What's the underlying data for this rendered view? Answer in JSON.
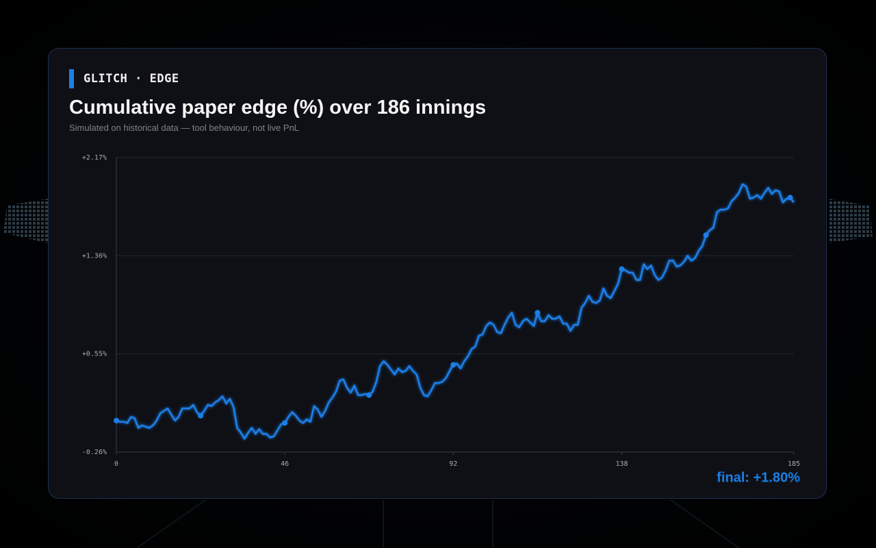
{
  "header": {
    "brand": "GLITCH · EDGE"
  },
  "chart_data": {
    "type": "line",
    "title": "Cumulative paper edge (%) over 186 innings",
    "subtitle": "Simulated on historical data — tool behaviour, not live PnL",
    "annotation": "final: +1.80%",
    "color": "#1a7fe8",
    "marker_every": 23,
    "grid": true,
    "xlim": [
      0,
      185
    ],
    "xticks": [
      0,
      46,
      92,
      138,
      185
    ],
    "ylim": [
      -0.26,
      2.17
    ],
    "yticks": [
      {
        "value": -0.26,
        "label": "-0.26%"
      },
      {
        "value": 0.55,
        "label": "+0.55%"
      },
      {
        "value": 1.36,
        "label": "+1.36%"
      },
      {
        "value": 2.17,
        "label": "+2.17%"
      }
    ],
    "x": [
      0,
      1,
      2,
      3,
      4,
      5,
      6,
      7,
      8,
      9,
      10,
      11,
      12,
      13,
      14,
      15,
      16,
      17,
      18,
      19,
      20,
      21,
      22,
      23,
      24,
      25,
      26,
      27,
      28,
      29,
      30,
      31,
      32,
      33,
      34,
      35,
      36,
      37,
      38,
      39,
      40,
      41,
      42,
      43,
      44,
      45,
      46,
      47,
      48,
      49,
      50,
      51,
      52,
      53,
      54,
      55,
      56,
      57,
      58,
      59,
      60,
      61,
      62,
      63,
      64,
      65,
      66,
      67,
      68,
      69,
      70,
      71,
      72,
      73,
      74,
      75,
      76,
      77,
      78,
      79,
      80,
      81,
      82,
      83,
      84,
      85,
      86,
      87,
      88,
      89,
      90,
      91,
      92,
      93,
      94,
      95,
      96,
      97,
      98,
      99,
      100,
      101,
      102,
      103,
      104,
      105,
      106,
      107,
      108,
      109,
      110,
      111,
      112,
      113,
      114,
      115,
      116,
      117,
      118,
      119,
      120,
      121,
      122,
      123,
      124,
      125,
      126,
      127,
      128,
      129,
      130,
      131,
      132,
      133,
      134,
      135,
      136,
      137,
      138,
      139,
      140,
      141,
      142,
      143,
      144,
      145,
      146,
      147,
      148,
      149,
      150,
      151,
      152,
      153,
      154,
      155,
      156,
      157,
      158,
      159,
      160,
      161,
      162,
      163,
      164,
      165,
      166,
      167,
      168,
      169,
      170,
      171,
      172,
      173,
      174,
      175,
      176,
      177,
      178,
      179,
      180,
      181,
      182,
      183,
      184,
      185
    ],
    "values": [
      0.0,
      -0.01,
      -0.01,
      -0.02,
      0.03,
      0.02,
      -0.06,
      -0.04,
      -0.05,
      -0.06,
      -0.04,
      0.0,
      0.06,
      0.08,
      0.1,
      0.05,
      0.0,
      0.03,
      0.1,
      0.1,
      0.1,
      0.13,
      0.07,
      0.04,
      0.08,
      0.13,
      0.12,
      0.15,
      0.17,
      0.2,
      0.14,
      0.18,
      0.11,
      -0.06,
      -0.1,
      -0.15,
      -0.1,
      -0.06,
      -0.11,
      -0.07,
      -0.11,
      -0.11,
      -0.14,
      -0.13,
      -0.08,
      -0.03,
      -0.02,
      0.03,
      0.07,
      0.04,
      0.0,
      -0.02,
      0.01,
      -0.01,
      0.12,
      0.09,
      0.03,
      0.08,
      0.15,
      0.19,
      0.24,
      0.33,
      0.34,
      0.27,
      0.23,
      0.29,
      0.21,
      0.21,
      0.22,
      0.21,
      0.24,
      0.32,
      0.45,
      0.49,
      0.46,
      0.42,
      0.38,
      0.43,
      0.4,
      0.41,
      0.45,
      0.41,
      0.38,
      0.27,
      0.21,
      0.2,
      0.25,
      0.31,
      0.31,
      0.32,
      0.35,
      0.41,
      0.46,
      0.47,
      0.43,
      0.49,
      0.53,
      0.59,
      0.61,
      0.7,
      0.71,
      0.78,
      0.81,
      0.79,
      0.73,
      0.72,
      0.79,
      0.85,
      0.89,
      0.79,
      0.77,
      0.82,
      0.84,
      0.81,
      0.78,
      0.89,
      0.82,
      0.82,
      0.87,
      0.84,
      0.84,
      0.86,
      0.8,
      0.8,
      0.74,
      0.79,
      0.79,
      0.93,
      0.97,
      1.03,
      0.98,
      0.97,
      0.99,
      1.09,
      1.03,
      1.01,
      1.07,
      1.13,
      1.25,
      1.24,
      1.22,
      1.22,
      1.16,
      1.16,
      1.29,
      1.25,
      1.28,
      1.2,
      1.16,
      1.18,
      1.24,
      1.32,
      1.32,
      1.27,
      1.28,
      1.31,
      1.36,
      1.32,
      1.34,
      1.4,
      1.44,
      1.53,
      1.57,
      1.59,
      1.72,
      1.74,
      1.74,
      1.75,
      1.81,
      1.84,
      1.88,
      1.95,
      1.93,
      1.83,
      1.84,
      1.86,
      1.83,
      1.88,
      1.92,
      1.87,
      1.9,
      1.89,
      1.8,
      1.83,
      1.84,
      1.8
    ]
  }
}
